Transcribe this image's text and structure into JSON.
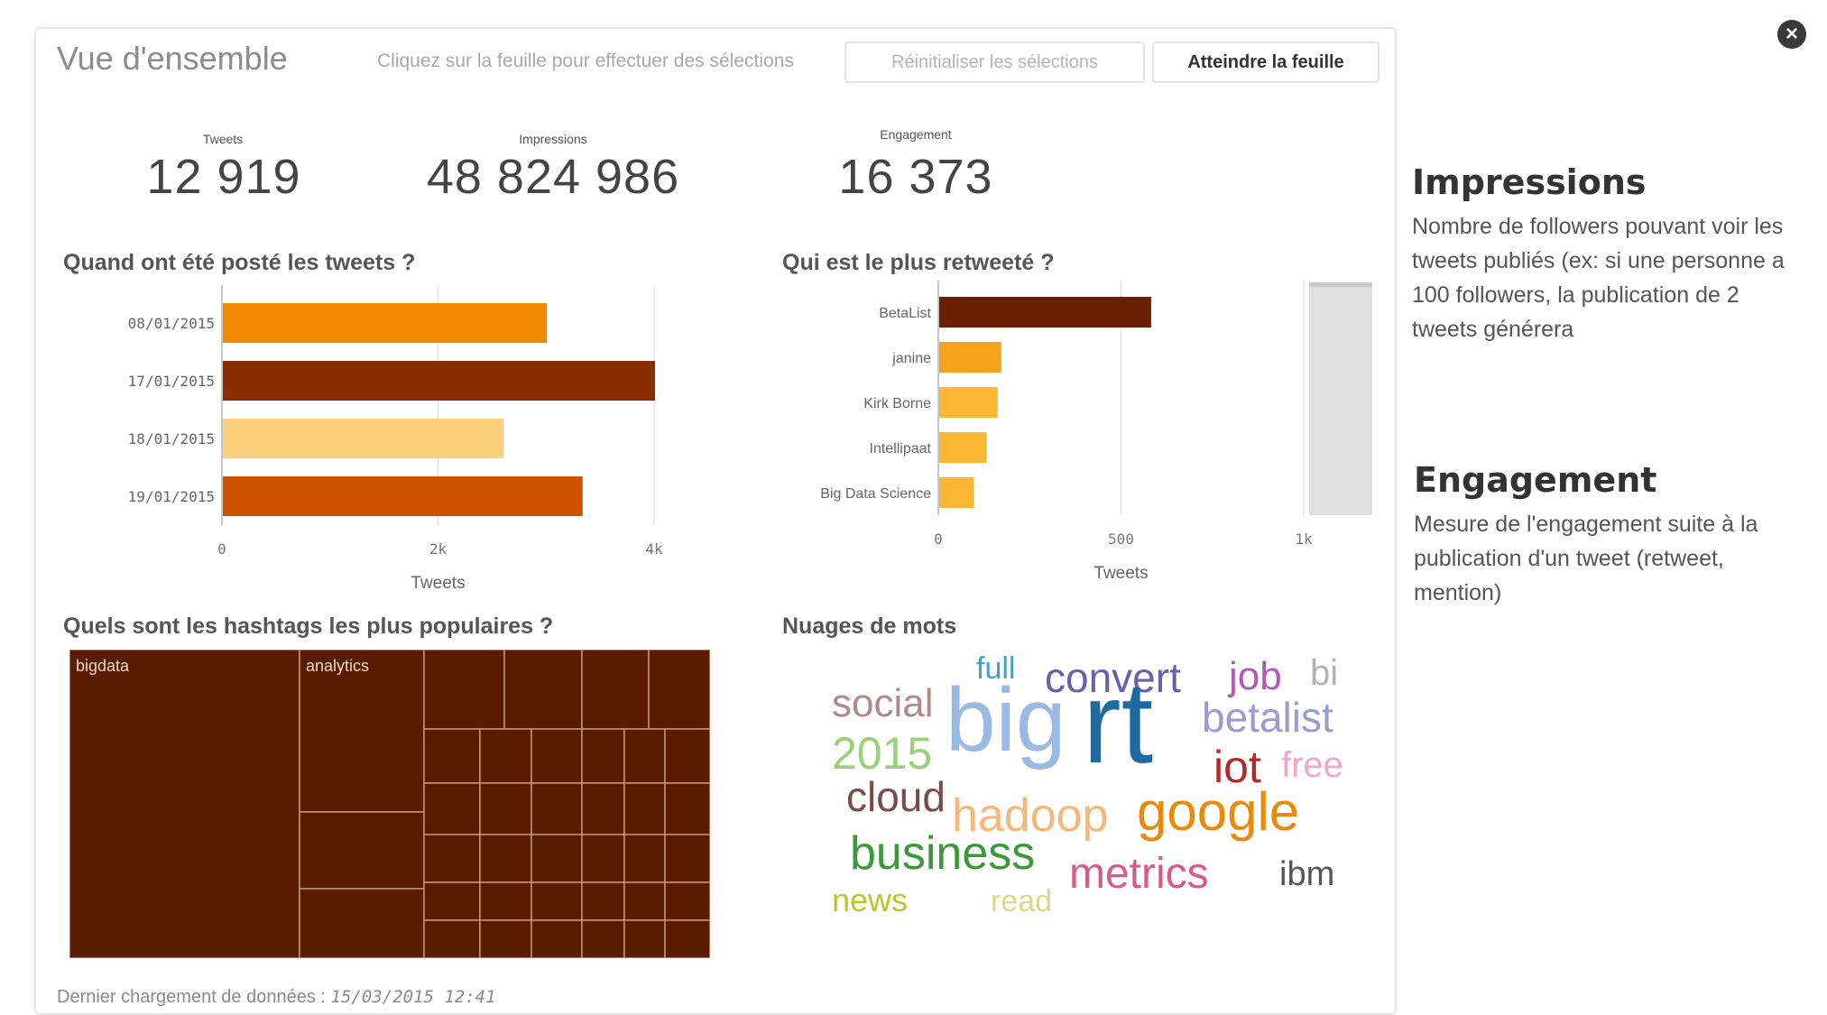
{
  "header": {
    "title": "Vue d'ensemble",
    "hint": "Cliquez sur la feuille pour effectuer des sélections",
    "reset_label": "Réinitialiser les sélections",
    "goto_label": "Atteindre la feuille"
  },
  "kpis": [
    {
      "label": "Tweets",
      "value": "12 919"
    },
    {
      "label": "Impressions",
      "value": "48 824 986"
    },
    {
      "label": "Engagement",
      "value": "16 373"
    }
  ],
  "chart_data": [
    {
      "type": "bar",
      "orientation": "horizontal",
      "title": "Quand ont été posté les tweets ?",
      "categories": [
        "08/01/2015",
        "17/01/2015",
        "18/01/2015",
        "19/01/2015"
      ],
      "values": [
        3000,
        4000,
        2600,
        3330
      ],
      "colors": [
        "#f28a00",
        "#8a2d00",
        "#fdd07e",
        "#cc5200"
      ],
      "xlabel": "Tweets",
      "xlim": [
        0,
        4000
      ],
      "ticks": [
        "0",
        "2k",
        "4k"
      ],
      "grid": true
    },
    {
      "type": "bar",
      "orientation": "horizontal",
      "title": "Qui est le plus retweeté ?",
      "categories": [
        "BetaList",
        "janine",
        "Kirk Borne",
        "Intellipaat",
        "Big Data Science"
      ],
      "values": [
        580,
        170,
        160,
        130,
        95
      ],
      "colors": [
        "#6b1f00",
        "#f5a31a",
        "#f9b733",
        "#f9b733",
        "#f9b733"
      ],
      "xlabel": "Tweets",
      "xlim": [
        0,
        1000
      ],
      "ticks": [
        "0",
        "500",
        "1k"
      ],
      "grid": true,
      "scrollbar": true
    },
    {
      "type": "treemap",
      "title": "Quels sont les hashtags les plus populaires ?",
      "color": "#5a1c00",
      "labels": [
        "bigdata",
        "analytics"
      ]
    }
  ],
  "wordcloud": {
    "title": "Nuages de mots",
    "words": [
      {
        "text": "full",
        "color": "#3aa5c9"
      },
      {
        "text": "convert",
        "color": "#6a5fa8"
      },
      {
        "text": "job",
        "color": "#b05bb5"
      },
      {
        "text": "bi",
        "color": "#b3b3b3"
      },
      {
        "text": "social",
        "color": "#b08a8a"
      },
      {
        "text": "big",
        "color": "#9ab9e3"
      },
      {
        "text": "rt",
        "color": "#1f6aa0"
      },
      {
        "text": "betalist",
        "color": "#9b9bcf"
      },
      {
        "text": "2015",
        "color": "#9ccf7a"
      },
      {
        "text": "iot",
        "color": "#b02a2a"
      },
      {
        "text": "free",
        "color": "#f0a8c8"
      },
      {
        "text": "cloud",
        "color": "#7a4a4a"
      },
      {
        "text": "hadoop",
        "color": "#f5b87a"
      },
      {
        "text": "google",
        "color": "#e88a0a"
      },
      {
        "text": "business",
        "color": "#3a9a3a"
      },
      {
        "text": "metrics",
        "color": "#d85a8a"
      },
      {
        "text": "ibm",
        "color": "#555555"
      },
      {
        "text": "news",
        "color": "#b8c82a"
      },
      {
        "text": "read",
        "color": "#d8d88a"
      }
    ]
  },
  "footer": {
    "label": "Dernier chargement de données :",
    "timestamp": "15/03/2015 12:41"
  },
  "side": {
    "impressions_title": "Impressions",
    "impressions_text": "Nombre de followers pouvant voir les tweets publiés (ex: si une personne a 100 followers, la publication de 2 tweets générera",
    "engagement_title": "Engagement",
    "engagement_text": "Mesure de l'engagement suite à la publication d'un tweet (retweet, mention)"
  },
  "icons": {
    "close": "close-icon"
  }
}
